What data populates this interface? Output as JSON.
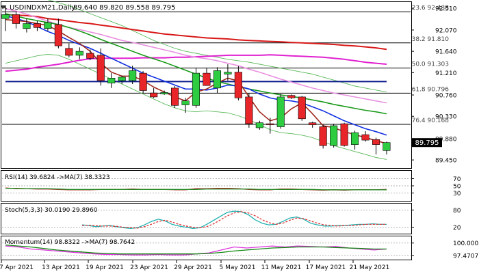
{
  "header": {
    "symbol": "USDINDXM21,Daily",
    "ohlc": "89.640 89.820 89.558 89.795"
  },
  "colors": {
    "bull": "#2ecc40",
    "bear": "#e8262a",
    "ma_red": "#d81818",
    "ma_magenta": "#e020d0",
    "ma_navy": "#0a1a8a",
    "ma_blue": "#1030e0",
    "ma_green": "#1a9a1a",
    "ma_pink": "#e890e0",
    "ma_brown": "#a0281c",
    "boll": "#58b858",
    "fib_line": "#000000",
    "price_tag_bg": "#000000",
    "rsi_line": "#bb2222",
    "rsi_ma": "#228822",
    "stoch_main": "#20b0b0",
    "stoch_signal": "#dd3333",
    "mom_main": "#dd33dd",
    "mom_ma": "#118811"
  },
  "chart_data": [
    {
      "type": "candlestick",
      "title": "USDINDXM21,Daily",
      "ylim": [
        89.3,
        92.62
      ],
      "y_ticks": [
        "92.510",
        "92.070",
        "91.640",
        "91.210",
        "90.760",
        "90.330",
        "89.880",
        "89.450"
      ],
      "x_ticks": [
        "7 Apr 2021",
        "13 Apr 2021",
        "19 Apr 2021",
        "23 Apr 2021",
        "29 Apr 2021",
        "5 May 2021",
        "11 May 2021",
        "17 May 2021",
        "21 May 2021"
      ],
      "candles": [
        {
          "o": 92.3,
          "h": 92.56,
          "l": 92.05,
          "c": 92.38
        },
        {
          "o": 92.38,
          "h": 92.45,
          "l": 92.1,
          "c": 92.2
        },
        {
          "o": 92.1,
          "h": 92.3,
          "l": 92.02,
          "c": 92.2
        },
        {
          "o": 92.2,
          "h": 92.25,
          "l": 92.05,
          "c": 92.12
        },
        {
          "o": 92.1,
          "h": 92.3,
          "l": 92.05,
          "c": 92.22
        },
        {
          "o": 92.18,
          "h": 92.3,
          "l": 91.7,
          "c": 91.75
        },
        {
          "o": 91.7,
          "h": 91.8,
          "l": 91.52,
          "c": 91.56
        },
        {
          "o": 91.56,
          "h": 91.72,
          "l": 91.48,
          "c": 91.64
        },
        {
          "o": 91.6,
          "h": 91.68,
          "l": 91.46,
          "c": 91.5
        },
        {
          "o": 91.56,
          "h": 91.7,
          "l": 90.95,
          "c": 91.05
        },
        {
          "o": 91.0,
          "h": 91.2,
          "l": 90.9,
          "c": 91.1
        },
        {
          "o": 91.05,
          "h": 91.15,
          "l": 90.98,
          "c": 91.12
        },
        {
          "o": 91.05,
          "h": 91.35,
          "l": 90.98,
          "c": 91.25
        },
        {
          "o": 91.2,
          "h": 91.24,
          "l": 90.8,
          "c": 90.85
        },
        {
          "o": 90.8,
          "h": 90.9,
          "l": 90.7,
          "c": 90.72
        },
        {
          "o": 90.78,
          "h": 90.85,
          "l": 90.76,
          "c": 90.81
        },
        {
          "o": 90.9,
          "h": 90.94,
          "l": 90.5,
          "c": 90.55
        },
        {
          "o": 90.56,
          "h": 90.7,
          "l": 90.4,
          "c": 90.64
        },
        {
          "o": 90.55,
          "h": 91.3,
          "l": 90.5,
          "c": 91.2
        },
        {
          "o": 91.2,
          "h": 91.3,
          "l": 90.95,
          "c": 90.95
        },
        {
          "o": 90.9,
          "h": 91.32,
          "l": 90.8,
          "c": 91.25
        },
        {
          "o": 91.18,
          "h": 91.38,
          "l": 91.05,
          "c": 91.22
        },
        {
          "o": 91.22,
          "h": 91.34,
          "l": 90.65,
          "c": 90.7
        },
        {
          "o": 90.72,
          "h": 90.8,
          "l": 90.1,
          "c": 90.18
        },
        {
          "o": 90.1,
          "h": 90.24,
          "l": 90.06,
          "c": 90.2
        },
        {
          "o": 90.18,
          "h": 90.3,
          "l": 89.98,
          "c": 90.16
        },
        {
          "o": 90.12,
          "h": 90.78,
          "l": 90.08,
          "c": 90.72
        },
        {
          "o": 90.75,
          "h": 90.77,
          "l": 90.68,
          "c": 90.7
        },
        {
          "o": 90.72,
          "h": 90.74,
          "l": 90.24,
          "c": 90.28
        },
        {
          "o": 90.2,
          "h": 90.22,
          "l": 90.1,
          "c": 90.16
        },
        {
          "o": 90.12,
          "h": 90.16,
          "l": 89.68,
          "c": 89.74
        },
        {
          "o": 89.74,
          "h": 90.18,
          "l": 89.7,
          "c": 90.14
        },
        {
          "o": 90.18,
          "h": 90.2,
          "l": 89.72,
          "c": 89.74
        },
        {
          "o": 89.76,
          "h": 90.04,
          "l": 89.66,
          "c": 90.0
        },
        {
          "o": 89.96,
          "h": 90.03,
          "l": 89.82,
          "c": 89.85
        },
        {
          "o": 89.86,
          "h": 89.9,
          "l": 89.56,
          "c": 89.76
        },
        {
          "o": 89.64,
          "h": 89.82,
          "l": 89.56,
          "c": 89.8
        }
      ],
      "fib_levels": [
        {
          "label": "23.6 92.438",
          "value": 92.438
        },
        {
          "label": "38.2 91.810",
          "value": 91.81
        },
        {
          "label": "50.0 91.303",
          "value": 91.303
        },
        {
          "label": "61.8 90.796",
          "value": 90.796
        },
        {
          "label": "76.4 90.168",
          "value": 90.168
        }
      ],
      "moving_averages": [
        {
          "key": "ma_red",
          "values": [
            92.38,
            92.37,
            92.36,
            92.34,
            92.3,
            92.28,
            92.25,
            92.22,
            92.2,
            92.17,
            92.14,
            92.11,
            92.08,
            92.05,
            92.02,
            91.99,
            91.97,
            91.95,
            91.93,
            91.91,
            91.9,
            91.89,
            91.87,
            91.86,
            91.85,
            91.84,
            91.83,
            91.82,
            91.81,
            91.8,
            91.79,
            91.78,
            91.76,
            91.75,
            91.73,
            91.71,
            91.68
          ]
        },
        {
          "key": "ma_magenta",
          "values": [
            91.24,
            91.26,
            91.28,
            91.32,
            91.35,
            91.38,
            91.42,
            91.46,
            91.49,
            91.5,
            91.5,
            91.5,
            91.5,
            91.51,
            91.51,
            91.51,
            91.52,
            91.52,
            91.53,
            91.54,
            91.55,
            91.56,
            91.56,
            91.56,
            91.56,
            91.57,
            91.56,
            91.55,
            91.54,
            91.53,
            91.52,
            91.5,
            91.48,
            91.45,
            91.42,
            91.4,
            91.38
          ]
        },
        {
          "key": "ma_navy",
          "values": [
            91.03,
            91.03,
            91.03,
            91.03,
            91.03,
            91.03,
            91.03,
            91.03,
            91.03,
            91.03,
            91.03,
            91.03,
            91.03,
            91.03,
            91.03,
            91.03,
            91.03,
            91.03,
            91.03,
            91.03,
            91.03,
            91.03,
            91.03,
            91.03,
            91.03,
            91.03,
            91.03,
            91.03,
            91.03,
            91.03,
            91.03,
            91.03,
            91.03,
            91.03,
            91.03,
            91.03,
            91.03
          ]
        },
        {
          "key": "ma_pink",
          "values": [
            92.5,
            92.45,
            92.39,
            92.32,
            92.25,
            92.18,
            92.12,
            92.08,
            92.03,
            91.98,
            91.92,
            91.86,
            91.82,
            91.77,
            91.72,
            91.67,
            91.62,
            91.56,
            91.52,
            91.49,
            91.45,
            91.4,
            91.35,
            91.28,
            91.22,
            91.15,
            91.08,
            91.02,
            90.96,
            90.9,
            90.85,
            90.8,
            90.76,
            90.72,
            90.68,
            90.64,
            90.6
          ]
        },
        {
          "key": "ma_green",
          "values": [
            92.4,
            92.35,
            92.3,
            92.26,
            92.22,
            92.18,
            92.12,
            92.05,
            91.97,
            91.88,
            91.8,
            91.72,
            91.64,
            91.56,
            91.49,
            91.42,
            91.34,
            91.26,
            91.18,
            91.1,
            91.03,
            90.98,
            90.93,
            90.88,
            90.84,
            90.8,
            90.76,
            90.73,
            90.7,
            90.66,
            90.62,
            90.57,
            90.53,
            90.49,
            90.45,
            90.42,
            90.38
          ]
        },
        {
          "key": "ma_blue",
          "values": [
            92.36,
            92.3,
            92.24,
            92.14,
            92.04,
            91.96,
            91.86,
            91.78,
            91.7,
            91.6,
            91.5,
            91.4,
            91.3,
            91.2,
            91.12,
            91.04,
            90.96,
            90.88,
            90.88,
            90.86,
            90.9,
            90.96,
            90.94,
            90.88,
            90.78,
            90.7,
            90.66,
            90.64,
            90.6,
            90.52,
            90.44,
            90.34,
            90.24,
            90.16,
            90.08,
            90.02,
            89.95
          ]
        },
        {
          "key": "ma_brown",
          "values": [
            92.28,
            92.26,
            92.24,
            92.2,
            92.16,
            92.05,
            91.92,
            91.8,
            91.64,
            91.4,
            91.22,
            91.14,
            91.14,
            91.05,
            90.92,
            90.82,
            90.72,
            90.64,
            90.82,
            90.88,
            91.0,
            91.1,
            91.04,
            90.72,
            90.42,
            90.24,
            90.3,
            90.48,
            90.6,
            90.38,
            90.14,
            90.1,
            90.02,
            89.96,
            89.9,
            89.84,
            89.78
          ]
        }
      ],
      "bollinger": {
        "upper": [
          92.9,
          92.85,
          92.8,
          92.74,
          92.68,
          92.62,
          92.56,
          92.48,
          92.4,
          92.32,
          92.24,
          92.16,
          92.06,
          91.96,
          91.86,
          91.78,
          91.7,
          91.64,
          91.6,
          91.56,
          91.52,
          91.48,
          91.45,
          91.42,
          91.38,
          91.34,
          91.3,
          91.26,
          91.22,
          91.18,
          91.12,
          91.06,
          91.0,
          90.94,
          90.9,
          90.86,
          90.82
        ],
        "lower": [
          91.4,
          91.45,
          91.5,
          91.55,
          91.58,
          91.56,
          91.48,
          91.38,
          91.28,
          91.18,
          91.08,
          90.98,
          90.88,
          90.78,
          90.68,
          90.58,
          90.5,
          90.44,
          90.42,
          90.44,
          90.42,
          90.4,
          90.34,
          90.26,
          90.16,
          90.06,
          90.0,
          89.98,
          89.95,
          89.9,
          89.82,
          89.74,
          89.68,
          89.62,
          89.56,
          89.5,
          89.46
        ]
      },
      "current_price": "89.795"
    },
    {
      "type": "line",
      "title": "RSI(14) 39.6824 ->MA(7) 38.3323",
      "y_ticks": [
        "70",
        "50",
        "30"
      ],
      "ylim": [
        10,
        90
      ],
      "series": [
        {
          "key": "rsi_line",
          "values": [
            44,
            42,
            42,
            41,
            41,
            40,
            39,
            39,
            39,
            40,
            40,
            40,
            41,
            40,
            40,
            40,
            39,
            39,
            42,
            42,
            43,
            43,
            42,
            40,
            39,
            39,
            41,
            41,
            40,
            39,
            38,
            39,
            38,
            39,
            39,
            39,
            40
          ]
        },
        {
          "key": "rsi_ma",
          "values": [
            43,
            43,
            42,
            42,
            42,
            41,
            40,
            40,
            40,
            40,
            40,
            40,
            40,
            40,
            40,
            40,
            40,
            40,
            40,
            41,
            41,
            41,
            41,
            41,
            40,
            40,
            40,
            40,
            40,
            40,
            39,
            39,
            39,
            39,
            39,
            39,
            39
          ]
        }
      ]
    },
    {
      "type": "line",
      "title": "Stoch(5,3,3) 30.0190 29.8960",
      "y_ticks": [
        "80",
        "20"
      ],
      "ylim": [
        0,
        100
      ],
      "series": [
        {
          "key": "stoch_main",
          "values": [
            28,
            26,
            22,
            24,
            26,
            22,
            18,
            16,
            18,
            28,
            40,
            48,
            42,
            30,
            24,
            20,
            16,
            18,
            30,
            44,
            58,
            72,
            76,
            74,
            64,
            46,
            34,
            28,
            30,
            40,
            52,
            56,
            48,
            34,
            28,
            24,
            24,
            26,
            26,
            28,
            30,
            30,
            32,
            30,
            30
          ]
        },
        {
          "key": "stoch_signal",
          "values": [
            26,
            27,
            25,
            24,
            24,
            23,
            20,
            18,
            17,
            22,
            30,
            40,
            44,
            38,
            30,
            24,
            20,
            18,
            22,
            32,
            46,
            60,
            70,
            74,
            70,
            60,
            46,
            36,
            30,
            34,
            44,
            52,
            50,
            42,
            34,
            28,
            26,
            24,
            26,
            26,
            28,
            30,
            30,
            30,
            30
          ]
        }
      ]
    },
    {
      "type": "line",
      "title": "Momentum(14) 98.8322 ->MA(7) 98.7642",
      "y_ticks": [
        "100.0005",
        "97.4707"
      ],
      "ylim": [
        96.8,
        101.2
      ],
      "series": [
        {
          "key": "mom_main",
          "values": [
            99.4,
            99.2,
            98.8,
            98.6,
            98.4,
            98.2,
            98.0,
            97.8,
            97.7,
            97.7,
            97.6,
            97.6,
            97.7,
            97.6,
            97.6,
            97.8,
            98.0,
            98.6,
            99.2,
            99.0,
            99.2,
            99.4,
            99.2,
            99.4,
            99.3,
            99.2,
            99.3,
            99.0,
            98.8,
            98.6,
            98.8
          ]
        },
        {
          "key": "mom_ma",
          "values": [
            99.6,
            99.4,
            99.2,
            98.9,
            98.6,
            98.4,
            98.2,
            98.0,
            97.9,
            97.8,
            97.8,
            97.8,
            97.8,
            97.8,
            97.8,
            97.8,
            97.9,
            98.1,
            98.4,
            98.6,
            98.8,
            99.0,
            99.1,
            99.2,
            99.2,
            99.2,
            99.1,
            99.0,
            98.9,
            98.8,
            98.8
          ]
        }
      ]
    }
  ]
}
